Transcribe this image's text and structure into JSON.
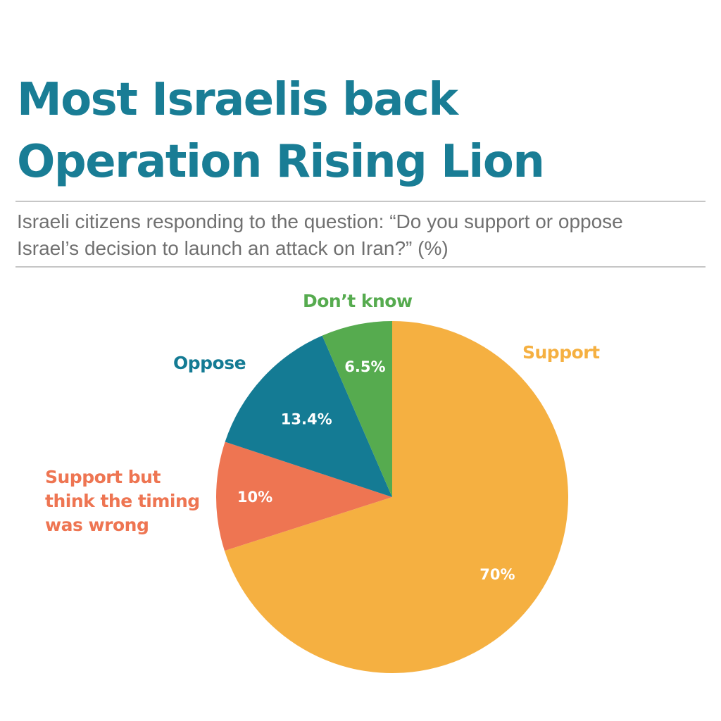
{
  "title": {
    "line1": "Most Israelis back",
    "line2": "Operation Rising Lion"
  },
  "subtitle": {
    "line1": "Israeli citizens responding to the question: “Do you support or oppose",
    "line2": "Israel’s decision to launch an attack on Iran?” (%)"
  },
  "colors": {
    "title": "#197d95",
    "subtitle": "#707070",
    "rule": "#c6c6c6"
  },
  "chart_data": {
    "type": "pie",
    "title": "Most Israelis back Operation Rising Lion",
    "unit": "%",
    "start": "12 o'clock, clockwise",
    "slices": [
      {
        "label": "Support",
        "label_lines": [
          "Support"
        ],
        "value": 70,
        "value_label": "70%",
        "color": "#f5b041"
      },
      {
        "label": "Support but think the timing was wrong",
        "label_lines": [
          "Support but",
          "think the timing",
          "was wrong"
        ],
        "value": 10,
        "value_label": "10%",
        "color": "#ee7552"
      },
      {
        "label": "Oppose",
        "label_lines": [
          "Oppose"
        ],
        "value": 13.4,
        "value_label": "13.4%",
        "color": "#147b94"
      },
      {
        "label": "Don’t know",
        "label_lines": [
          "Don’t know"
        ],
        "value": 6.5,
        "value_label": "6.5%",
        "color": "#56ab4f"
      }
    ]
  }
}
